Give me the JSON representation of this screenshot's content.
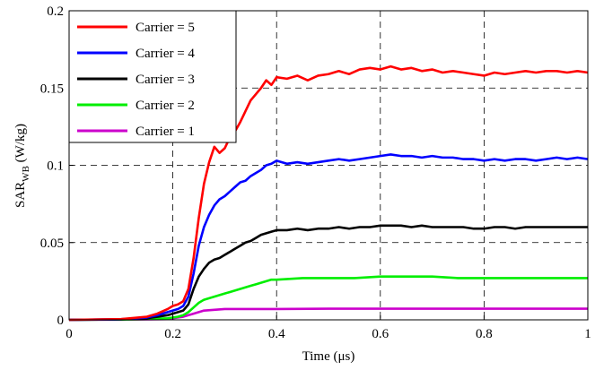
{
  "chart_data": {
    "type": "line",
    "xlabel": "Time (μs)",
    "ylabel_main": "SAR",
    "ylabel_sub": "WB",
    "ylabel_unit": " (W/kg)",
    "xlim": [
      0,
      1
    ],
    "ylim": [
      0,
      0.2
    ],
    "xticks": [
      {
        "value": 0,
        "label": "0"
      },
      {
        "value": 0.2,
        "label": "0.2"
      },
      {
        "value": 0.4,
        "label": "0.4"
      },
      {
        "value": 0.6,
        "label": "0.6"
      },
      {
        "value": 0.8,
        "label": "0.8"
      },
      {
        "value": 1,
        "label": "1"
      }
    ],
    "yticks": [
      {
        "value": 0,
        "label": "0"
      },
      {
        "value": 0.05,
        "label": "0.05"
      },
      {
        "value": 0.1,
        "label": "0.1"
      },
      {
        "value": 0.15,
        "label": "0.15"
      },
      {
        "value": 0.2,
        "label": "0.2"
      }
    ],
    "grid": true,
    "legend_position": "top-left",
    "series": [
      {
        "name": "Carrier = 5",
        "color": "#ff0000",
        "points": [
          [
            0,
            0
          ],
          [
            0.1,
            0.0005
          ],
          [
            0.15,
            0.002
          ],
          [
            0.17,
            0.004
          ],
          [
            0.19,
            0.007
          ],
          [
            0.2,
            0.009
          ],
          [
            0.21,
            0.01
          ],
          [
            0.22,
            0.012
          ],
          [
            0.23,
            0.02
          ],
          [
            0.24,
            0.04
          ],
          [
            0.25,
            0.066
          ],
          [
            0.26,
            0.088
          ],
          [
            0.27,
            0.102
          ],
          [
            0.28,
            0.112
          ],
          [
            0.29,
            0.108
          ],
          [
            0.3,
            0.111
          ],
          [
            0.31,
            0.118
          ],
          [
            0.32,
            0.122
          ],
          [
            0.33,
            0.128
          ],
          [
            0.34,
            0.135
          ],
          [
            0.35,
            0.142
          ],
          [
            0.36,
            0.146
          ],
          [
            0.37,
            0.15
          ],
          [
            0.38,
            0.155
          ],
          [
            0.39,
            0.152
          ],
          [
            0.4,
            0.157
          ],
          [
            0.42,
            0.156
          ],
          [
            0.44,
            0.158
          ],
          [
            0.46,
            0.155
          ],
          [
            0.48,
            0.158
          ],
          [
            0.5,
            0.159
          ],
          [
            0.52,
            0.161
          ],
          [
            0.54,
            0.159
          ],
          [
            0.56,
            0.162
          ],
          [
            0.58,
            0.163
          ],
          [
            0.6,
            0.162
          ],
          [
            0.62,
            0.164
          ],
          [
            0.64,
            0.162
          ],
          [
            0.66,
            0.163
          ],
          [
            0.68,
            0.161
          ],
          [
            0.7,
            0.162
          ],
          [
            0.72,
            0.16
          ],
          [
            0.74,
            0.161
          ],
          [
            0.76,
            0.16
          ],
          [
            0.78,
            0.159
          ],
          [
            0.8,
            0.158
          ],
          [
            0.82,
            0.16
          ],
          [
            0.84,
            0.159
          ],
          [
            0.86,
            0.16
          ],
          [
            0.88,
            0.161
          ],
          [
            0.9,
            0.16
          ],
          [
            0.92,
            0.161
          ],
          [
            0.94,
            0.161
          ],
          [
            0.96,
            0.16
          ],
          [
            0.98,
            0.161
          ],
          [
            1.0,
            0.16
          ]
        ]
      },
      {
        "name": "Carrier = 4",
        "color": "#0000ff",
        "points": [
          [
            0,
            0
          ],
          [
            0.1,
            0.0004
          ],
          [
            0.15,
            0.0015
          ],
          [
            0.17,
            0.003
          ],
          [
            0.19,
            0.005
          ],
          [
            0.2,
            0.006
          ],
          [
            0.21,
            0.007
          ],
          [
            0.22,
            0.009
          ],
          [
            0.23,
            0.015
          ],
          [
            0.24,
            0.03
          ],
          [
            0.25,
            0.048
          ],
          [
            0.26,
            0.06
          ],
          [
            0.27,
            0.068
          ],
          [
            0.28,
            0.074
          ],
          [
            0.29,
            0.078
          ],
          [
            0.3,
            0.08
          ],
          [
            0.31,
            0.083
          ],
          [
            0.32,
            0.086
          ],
          [
            0.33,
            0.089
          ],
          [
            0.34,
            0.09
          ],
          [
            0.35,
            0.093
          ],
          [
            0.36,
            0.095
          ],
          [
            0.37,
            0.097
          ],
          [
            0.38,
            0.1
          ],
          [
            0.39,
            0.101
          ],
          [
            0.4,
            0.103
          ],
          [
            0.42,
            0.101
          ],
          [
            0.44,
            0.102
          ],
          [
            0.46,
            0.101
          ],
          [
            0.48,
            0.102
          ],
          [
            0.5,
            0.103
          ],
          [
            0.52,
            0.104
          ],
          [
            0.54,
            0.103
          ],
          [
            0.56,
            0.104
          ],
          [
            0.58,
            0.105
          ],
          [
            0.6,
            0.106
          ],
          [
            0.62,
            0.107
          ],
          [
            0.64,
            0.106
          ],
          [
            0.66,
            0.106
          ],
          [
            0.68,
            0.105
          ],
          [
            0.7,
            0.106
          ],
          [
            0.72,
            0.105
          ],
          [
            0.74,
            0.105
          ],
          [
            0.76,
            0.104
          ],
          [
            0.78,
            0.104
          ],
          [
            0.8,
            0.103
          ],
          [
            0.82,
            0.104
          ],
          [
            0.84,
            0.103
          ],
          [
            0.86,
            0.104
          ],
          [
            0.88,
            0.104
          ],
          [
            0.9,
            0.103
          ],
          [
            0.92,
            0.104
          ],
          [
            0.94,
            0.105
          ],
          [
            0.96,
            0.104
          ],
          [
            0.98,
            0.105
          ],
          [
            1.0,
            0.104
          ]
        ]
      },
      {
        "name": "Carrier = 3",
        "color": "#000000",
        "points": [
          [
            0,
            0
          ],
          [
            0.1,
            0.0003
          ],
          [
            0.15,
            0.001
          ],
          [
            0.17,
            0.002
          ],
          [
            0.19,
            0.003
          ],
          [
            0.2,
            0.004
          ],
          [
            0.21,
            0.005
          ],
          [
            0.22,
            0.006
          ],
          [
            0.23,
            0.01
          ],
          [
            0.24,
            0.02
          ],
          [
            0.25,
            0.028
          ],
          [
            0.26,
            0.033
          ],
          [
            0.27,
            0.037
          ],
          [
            0.28,
            0.039
          ],
          [
            0.29,
            0.04
          ],
          [
            0.3,
            0.042
          ],
          [
            0.31,
            0.044
          ],
          [
            0.32,
            0.046
          ],
          [
            0.33,
            0.048
          ],
          [
            0.34,
            0.05
          ],
          [
            0.35,
            0.051
          ],
          [
            0.36,
            0.053
          ],
          [
            0.37,
            0.055
          ],
          [
            0.38,
            0.056
          ],
          [
            0.39,
            0.057
          ],
          [
            0.4,
            0.058
          ],
          [
            0.42,
            0.058
          ],
          [
            0.44,
            0.059
          ],
          [
            0.46,
            0.058
          ],
          [
            0.48,
            0.059
          ],
          [
            0.5,
            0.059
          ],
          [
            0.52,
            0.06
          ],
          [
            0.54,
            0.059
          ],
          [
            0.56,
            0.06
          ],
          [
            0.58,
            0.06
          ],
          [
            0.6,
            0.061
          ],
          [
            0.62,
            0.061
          ],
          [
            0.64,
            0.061
          ],
          [
            0.66,
            0.06
          ],
          [
            0.68,
            0.061
          ],
          [
            0.7,
            0.06
          ],
          [
            0.72,
            0.06
          ],
          [
            0.74,
            0.06
          ],
          [
            0.76,
            0.06
          ],
          [
            0.78,
            0.059
          ],
          [
            0.8,
            0.059
          ],
          [
            0.82,
            0.06
          ],
          [
            0.84,
            0.06
          ],
          [
            0.86,
            0.059
          ],
          [
            0.88,
            0.06
          ],
          [
            0.9,
            0.06
          ],
          [
            0.92,
            0.06
          ],
          [
            0.94,
            0.06
          ],
          [
            0.96,
            0.06
          ],
          [
            0.98,
            0.06
          ],
          [
            1.0,
            0.06
          ]
        ]
      },
      {
        "name": "Carrier = 2",
        "color": "#00ee00",
        "points": [
          [
            0,
            0
          ],
          [
            0.1,
            0.0002
          ],
          [
            0.15,
            0.0005
          ],
          [
            0.19,
            0.001
          ],
          [
            0.2,
            0.0015
          ],
          [
            0.21,
            0.002
          ],
          [
            0.22,
            0.003
          ],
          [
            0.23,
            0.005
          ],
          [
            0.24,
            0.008
          ],
          [
            0.25,
            0.011
          ],
          [
            0.26,
            0.013
          ],
          [
            0.27,
            0.014
          ],
          [
            0.28,
            0.015
          ],
          [
            0.29,
            0.016
          ],
          [
            0.3,
            0.017
          ],
          [
            0.31,
            0.018
          ],
          [
            0.32,
            0.019
          ],
          [
            0.33,
            0.02
          ],
          [
            0.34,
            0.021
          ],
          [
            0.35,
            0.022
          ],
          [
            0.36,
            0.023
          ],
          [
            0.37,
            0.024
          ],
          [
            0.38,
            0.025
          ],
          [
            0.39,
            0.026
          ],
          [
            0.4,
            0.026
          ],
          [
            0.45,
            0.027
          ],
          [
            0.5,
            0.027
          ],
          [
            0.55,
            0.027
          ],
          [
            0.6,
            0.028
          ],
          [
            0.65,
            0.028
          ],
          [
            0.7,
            0.028
          ],
          [
            0.75,
            0.027
          ],
          [
            0.8,
            0.027
          ],
          [
            0.85,
            0.027
          ],
          [
            0.9,
            0.027
          ],
          [
            0.95,
            0.027
          ],
          [
            1.0,
            0.027
          ]
        ]
      },
      {
        "name": "Carrier = 1",
        "color": "#cc00cc",
        "points": [
          [
            0,
            0
          ],
          [
            0.1,
            0.0001
          ],
          [
            0.19,
            0.0005
          ],
          [
            0.2,
            0.001
          ],
          [
            0.22,
            0.002
          ],
          [
            0.24,
            0.004
          ],
          [
            0.26,
            0.006
          ],
          [
            0.28,
            0.0065
          ],
          [
            0.3,
            0.007
          ],
          [
            0.35,
            0.007
          ],
          [
            0.4,
            0.007
          ],
          [
            0.5,
            0.0072
          ],
          [
            0.6,
            0.0072
          ],
          [
            0.7,
            0.0072
          ],
          [
            0.8,
            0.0072
          ],
          [
            0.9,
            0.0072
          ],
          [
            1.0,
            0.0072
          ]
        ]
      }
    ]
  }
}
